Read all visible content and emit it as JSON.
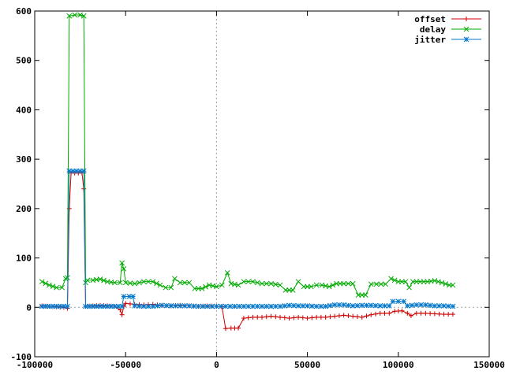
{
  "chart_data": {
    "type": "line",
    "title": "",
    "xlabel": "",
    "ylabel": "",
    "xlim": [
      -100000,
      150000
    ],
    "ylim": [
      -100,
      600
    ],
    "x_ticks": [
      -100000,
      -50000,
      0,
      50000,
      100000,
      150000
    ],
    "x_tick_labels": [
      "-100000",
      "-50000",
      "0",
      "50000",
      "100000",
      "150000"
    ],
    "y_ticks": [
      -100,
      0,
      100,
      200,
      300,
      400,
      500,
      600
    ],
    "y_tick_labels": [
      "-100",
      "0",
      "100",
      "200",
      "300",
      "400",
      "500",
      "600"
    ],
    "zero_axes": "dotted gray",
    "grid": false,
    "legend_position": "top-right",
    "series": [
      {
        "name": "offset",
        "color": "#cc0000",
        "marker": "plus",
        "points": [
          [
            -96000,
            3
          ],
          [
            -92000,
            2
          ],
          [
            -88000,
            1
          ],
          [
            -84000,
            0
          ],
          [
            -82000,
            -2
          ],
          [
            -81000,
            200
          ],
          [
            -80000,
            272
          ],
          [
            -78000,
            272
          ],
          [
            -76000,
            272
          ],
          [
            -74000,
            272
          ],
          [
            -73000,
            240
          ],
          [
            -72000,
            2
          ],
          [
            -68000,
            3
          ],
          [
            -64000,
            4
          ],
          [
            -60000,
            3
          ],
          [
            -56000,
            2
          ],
          [
            -53000,
            -5
          ],
          [
            -52000,
            -15
          ],
          [
            -51000,
            2
          ],
          [
            -50000,
            8
          ],
          [
            -45000,
            6
          ],
          [
            -40000,
            5
          ],
          [
            -35000,
            6
          ],
          [
            -30000,
            4
          ],
          [
            -25000,
            3
          ],
          [
            -20000,
            4
          ],
          [
            -15000,
            3
          ],
          [
            -10000,
            2
          ],
          [
            -5000,
            3
          ],
          [
            0,
            2
          ],
          [
            3000,
            1
          ],
          [
            5000,
            -43
          ],
          [
            8000,
            -42
          ],
          [
            12000,
            -42
          ],
          [
            15000,
            -22
          ],
          [
            20000,
            -20
          ],
          [
            25000,
            -20
          ],
          [
            30000,
            -18
          ],
          [
            35000,
            -20
          ],
          [
            40000,
            -22
          ],
          [
            45000,
            -20
          ],
          [
            50000,
            -22
          ],
          [
            55000,
            -20
          ],
          [
            60000,
            -20
          ],
          [
            65000,
            -18
          ],
          [
            70000,
            -16
          ],
          [
            75000,
            -18
          ],
          [
            80000,
            -20
          ],
          [
            85000,
            -15
          ],
          [
            90000,
            -12
          ],
          [
            95000,
            -12
          ],
          [
            98000,
            -8
          ],
          [
            102000,
            -7
          ],
          [
            105000,
            -12
          ],
          [
            107000,
            -17
          ],
          [
            110000,
            -12
          ],
          [
            115000,
            -12
          ],
          [
            120000,
            -13
          ],
          [
            125000,
            -14
          ],
          [
            130000,
            -14
          ]
        ]
      },
      {
        "name": "delay",
        "color": "#00aa00",
        "marker": "cross",
        "points": [
          [
            -96000,
            52
          ],
          [
            -92000,
            45
          ],
          [
            -88000,
            40
          ],
          [
            -85000,
            40
          ],
          [
            -83000,
            58
          ],
          [
            -82000,
            60
          ],
          [
            -81000,
            590
          ],
          [
            -78000,
            592
          ],
          [
            -75000,
            592
          ],
          [
            -73000,
            590
          ],
          [
            -72000,
            50
          ],
          [
            -71000,
            55
          ],
          [
            -68000,
            55
          ],
          [
            -64000,
            57
          ],
          [
            -60000,
            52
          ],
          [
            -56000,
            50
          ],
          [
            -53000,
            50
          ],
          [
            -52000,
            90
          ],
          [
            -51000,
            78
          ],
          [
            -50000,
            50
          ],
          [
            -45000,
            48
          ],
          [
            -40000,
            52
          ],
          [
            -35000,
            52
          ],
          [
            -31000,
            45
          ],
          [
            -28000,
            40
          ],
          [
            -25000,
            40
          ],
          [
            -23000,
            58
          ],
          [
            -20000,
            50
          ],
          [
            -15000,
            50
          ],
          [
            -12000,
            38
          ],
          [
            -8000,
            38
          ],
          [
            -4000,
            45
          ],
          [
            0,
            42
          ],
          [
            3000,
            45
          ],
          [
            6000,
            70
          ],
          [
            8000,
            48
          ],
          [
            12000,
            45
          ],
          [
            15000,
            52
          ],
          [
            20000,
            52
          ],
          [
            25000,
            48
          ],
          [
            30000,
            48
          ],
          [
            35000,
            45
          ],
          [
            38000,
            35
          ],
          [
            42000,
            35
          ],
          [
            45000,
            52
          ],
          [
            48000,
            42
          ],
          [
            52000,
            42
          ],
          [
            55000,
            45
          ],
          [
            58000,
            45
          ],
          [
            62000,
            42
          ],
          [
            66000,
            48
          ],
          [
            70000,
            48
          ],
          [
            75000,
            48
          ],
          [
            78000,
            25
          ],
          [
            82000,
            25
          ],
          [
            85000,
            47
          ],
          [
            88000,
            47
          ],
          [
            93000,
            47
          ],
          [
            96000,
            58
          ],
          [
            100000,
            52
          ],
          [
            104000,
            52
          ],
          [
            106000,
            40
          ],
          [
            108000,
            52
          ],
          [
            112000,
            52
          ],
          [
            116000,
            52
          ],
          [
            120000,
            54
          ],
          [
            124000,
            50
          ],
          [
            128000,
            45
          ],
          [
            130000,
            45
          ]
        ]
      },
      {
        "name": "jitter",
        "color": "#0077cc",
        "marker": "star",
        "points": [
          [
            -96000,
            2
          ],
          [
            -92000,
            2
          ],
          [
            -88000,
            2
          ],
          [
            -84000,
            2
          ],
          [
            -82000,
            2
          ],
          [
            -81000,
            276
          ],
          [
            -79000,
            276
          ],
          [
            -77000,
            276
          ],
          [
            -75000,
            276
          ],
          [
            -73000,
            276
          ],
          [
            -72000,
            2
          ],
          [
            -68000,
            2
          ],
          [
            -64000,
            2
          ],
          [
            -60000,
            2
          ],
          [
            -56000,
            2
          ],
          [
            -52000,
            2
          ],
          [
            -51000,
            22
          ],
          [
            -48000,
            22
          ],
          [
            -46000,
            22
          ],
          [
            -45000,
            3
          ],
          [
            -40000,
            2
          ],
          [
            -35000,
            2
          ],
          [
            -30000,
            4
          ],
          [
            -25000,
            3
          ],
          [
            -20000,
            3
          ],
          [
            -15000,
            3
          ],
          [
            -10000,
            2
          ],
          [
            -5000,
            2
          ],
          [
            0,
            2
          ],
          [
            5000,
            2
          ],
          [
            10000,
            2
          ],
          [
            15000,
            2
          ],
          [
            20000,
            2
          ],
          [
            25000,
            2
          ],
          [
            30000,
            2
          ],
          [
            35000,
            2
          ],
          [
            40000,
            4
          ],
          [
            45000,
            3
          ],
          [
            50000,
            3
          ],
          [
            55000,
            2
          ],
          [
            60000,
            2
          ],
          [
            65000,
            5
          ],
          [
            70000,
            5
          ],
          [
            75000,
            3
          ],
          [
            80000,
            4
          ],
          [
            85000,
            4
          ],
          [
            90000,
            3
          ],
          [
            95000,
            3
          ],
          [
            97000,
            12
          ],
          [
            100000,
            12
          ],
          [
            103000,
            12
          ],
          [
            105000,
            3
          ],
          [
            110000,
            5
          ],
          [
            115000,
            5
          ],
          [
            120000,
            3
          ],
          [
            125000,
            3
          ],
          [
            130000,
            2
          ]
        ]
      }
    ]
  }
}
